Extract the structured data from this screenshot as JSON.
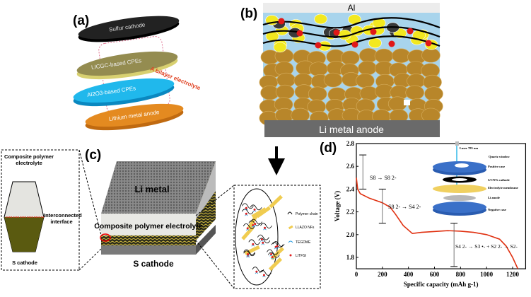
{
  "panel_a": {
    "label": "(a)",
    "layers": [
      "Sulfur cathode",
      "LICGC-based CPEs",
      "Al2O3-based CPEs",
      "Lithium metal anode"
    ],
    "bilayer_label": "A bilayer electrolyte",
    "layer_colors": [
      "#1a1a1a",
      "#9a9350",
      "#1fb4e6",
      "#e0861c"
    ]
  },
  "panel_b": {
    "label": "(b)",
    "top_label": "Al",
    "bottom_label": "Li metal anode"
  },
  "panel_c": {
    "label": "(c)",
    "left_inset": {
      "top": "Composite polymer electrolyte",
      "middle": "Interconnected interface",
      "bottom": "S cathode"
    },
    "block": {
      "top": "Li metal",
      "middle": "Composite polymer electrolyte",
      "bottom": "S cathode"
    },
    "legend": [
      "Polymer chain",
      "LLAZO NFs",
      "TEGDME",
      "LITFSI"
    ]
  },
  "panel_d": {
    "label": "(d)",
    "inset": {
      "laser": "Laser 785 nm",
      "layers": [
        "Quartz window",
        "Positive case",
        "S/CNTs cathode",
        "Electrolyte membrane",
        "Li anode",
        "Negative case"
      ]
    },
    "annotations": [
      "S8 → S8 2-",
      "S8 2- → S4 2-",
      "S4 2- → S3 •- + S2 2- → S2-"
    ]
  },
  "chart_data": {
    "type": "line",
    "xlabel": "Specific capacity (mAh g-1)",
    "ylabel": "Voltage (V)",
    "xlim": [
      0,
      1300
    ],
    "ylim": [
      1.7,
      2.8
    ],
    "xticks": [
      0,
      200,
      400,
      600,
      800,
      1000,
      1200
    ],
    "yticks": [
      1.8,
      2.0,
      2.2,
      2.4,
      2.6,
      2.8
    ],
    "ytick_labels": [
      "1.8",
      "2.0",
      "2.2",
      "2.4",
      "2.6",
      "2.8"
    ],
    "series": [
      {
        "color": "#e03010",
        "x": [
          0,
          10,
          30,
          100,
          200,
          260,
          300,
          360,
          430,
          500,
          700,
          800,
          900,
          1000,
          1100,
          1150,
          1200,
          1240
        ],
        "y": [
          2.5,
          2.4,
          2.36,
          2.32,
          2.28,
          2.24,
          2.18,
          2.08,
          2.01,
          2.02,
          2.035,
          2.03,
          2.02,
          2.0,
          1.96,
          1.9,
          1.8,
          1.7
        ]
      }
    ],
    "ranges": [
      {
        "x": 50,
        "y": [
          2.4,
          2.7
        ]
      },
      {
        "x": 200,
        "y": [
          2.1,
          2.4
        ]
      },
      {
        "x": 750,
        "y": [
          1.72,
          2.1
        ]
      }
    ]
  }
}
